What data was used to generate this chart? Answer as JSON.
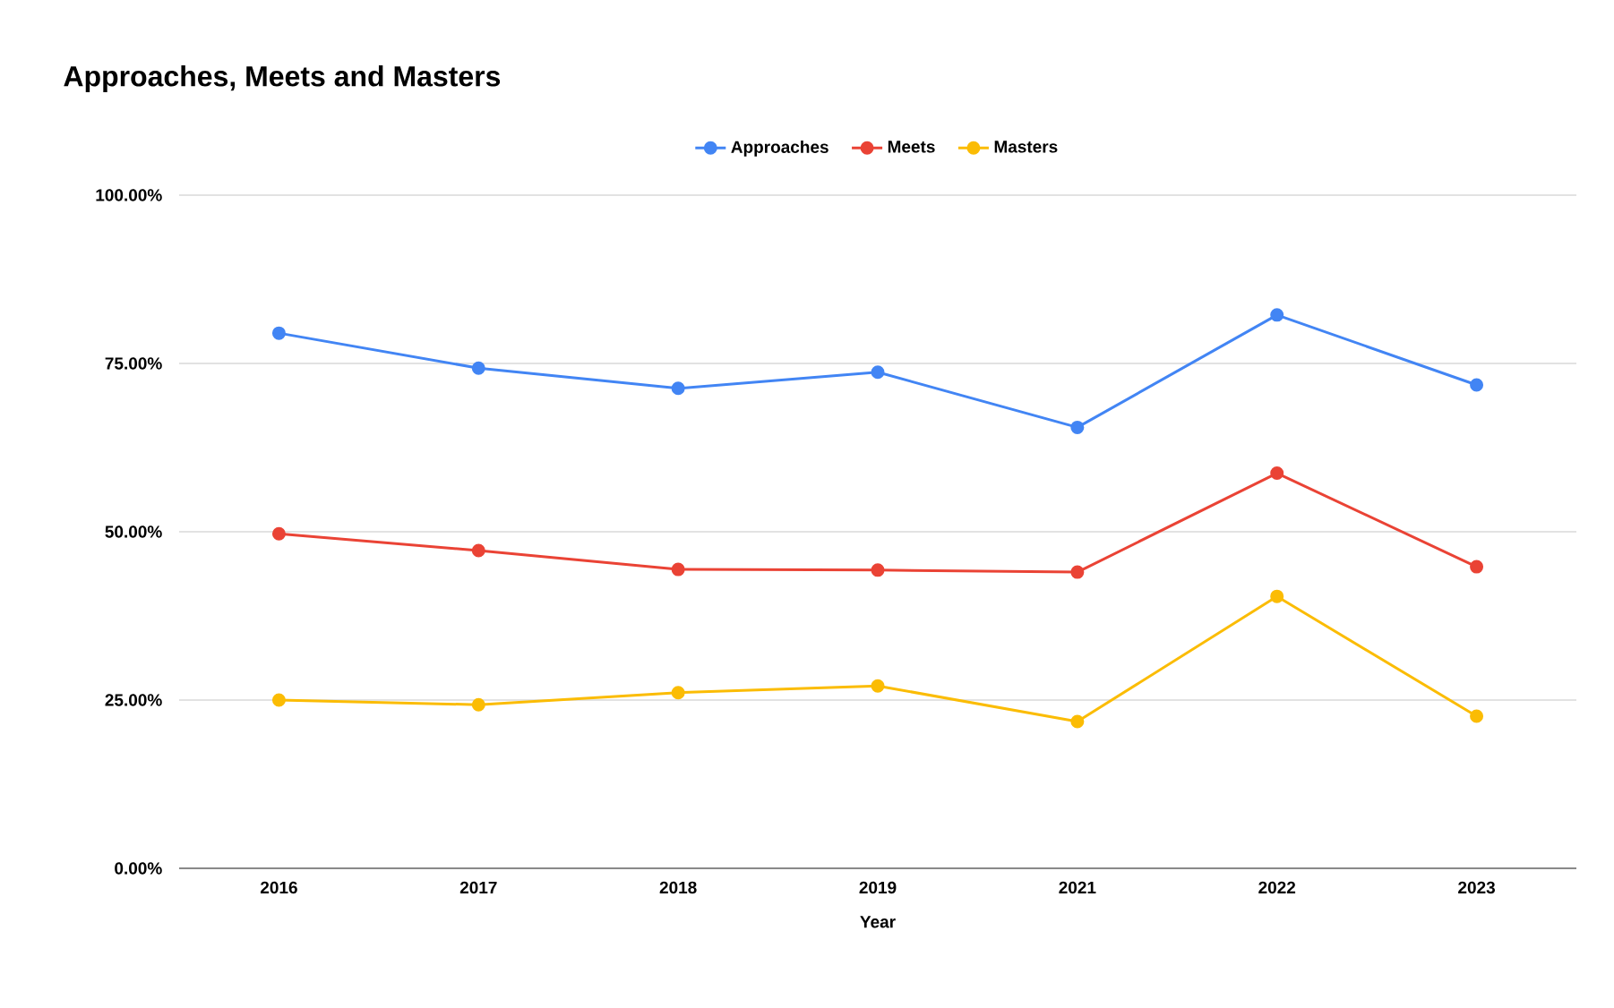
{
  "chart_data": {
    "type": "line",
    "title": "Approaches, Meets and Masters",
    "xlabel": "Year",
    "categories": [
      "2016",
      "2017",
      "2018",
      "2019",
      "2021",
      "2022",
      "2023"
    ],
    "series": [
      {
        "name": "Approaches",
        "color": "#4285f4",
        "values": [
          79.5,
          74.3,
          71.3,
          73.7,
          65.5,
          82.2,
          71.8
        ]
      },
      {
        "name": "Meets",
        "color": "#ea4335",
        "values": [
          49.7,
          47.2,
          44.4,
          44.3,
          44.0,
          58.7,
          44.8
        ]
      },
      {
        "name": "Masters",
        "color": "#fbbc04",
        "values": [
          25.0,
          24.3,
          26.1,
          27.1,
          21.8,
          40.4,
          22.6
        ]
      }
    ],
    "ylim": [
      0,
      100
    ],
    "yticks": [
      {
        "value": 0,
        "label": "0.00%"
      },
      {
        "value": 25,
        "label": "25.00%"
      },
      {
        "value": 50,
        "label": "50.00%"
      },
      {
        "value": 75,
        "label": "75.00%"
      },
      {
        "value": 100,
        "label": "100.00%"
      }
    ],
    "grid": "y",
    "legend": "top",
    "marker": "circle",
    "line_style": "solid"
  }
}
